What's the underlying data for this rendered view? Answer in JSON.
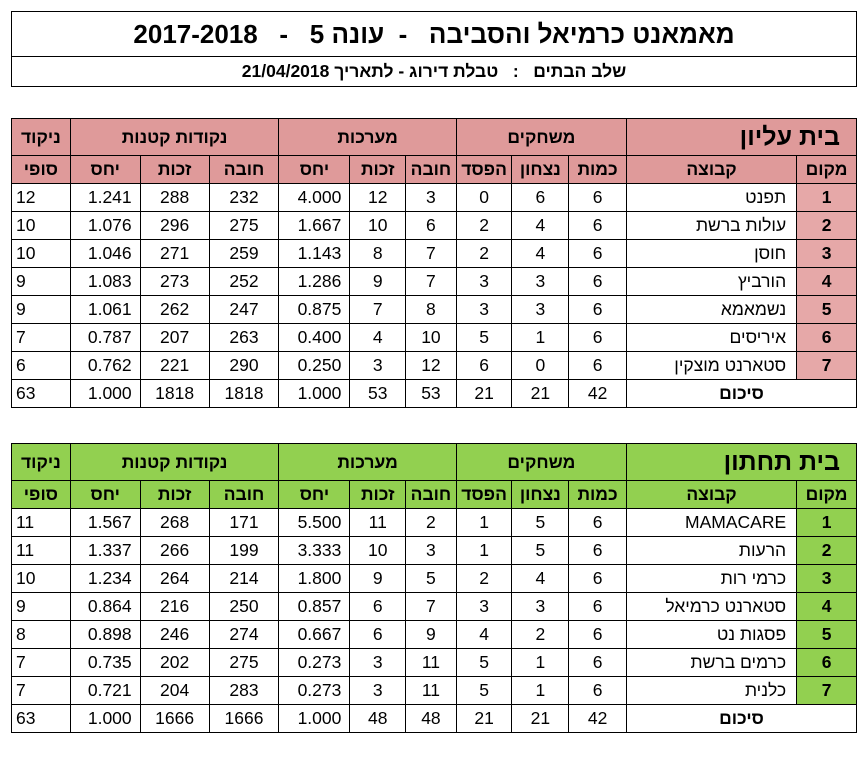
{
  "header": {
    "title": "מאמאנט כרמיאל והסביבה   -  עונה 5   -   2017-2018",
    "subtitle": "שלב הבתים   :   טבלת דירוג - לתאריך 21/04/2018"
  },
  "colors": {
    "upper_header": "#df9a9a",
    "lower_header": "#92d050"
  },
  "columns": {
    "points_top": "ניקוד",
    "points_bottom": "סופי",
    "small_points": "נקודות קטנות",
    "sets": "מערכות",
    "games": "משחקים",
    "ratio": "יחס",
    "won": "זכות",
    "lost": "חובה",
    "loss": "הפסד",
    "win": "נצחון",
    "played": "כמות",
    "team": "קבוצה",
    "place": "מקום"
  },
  "upper": {
    "name": "בית עליון",
    "rows": [
      {
        "rank": "1",
        "team": "תפנט",
        "played": "6",
        "wins": "6",
        "losses": "0",
        "sets_lost": "3",
        "sets_won": "12",
        "sets_ratio": "4.000",
        "pts_lost": "232",
        "pts_won": "288",
        "pts_ratio": "1.241",
        "score": "12"
      },
      {
        "rank": "2",
        "team": "עולות ברשת",
        "played": "6",
        "wins": "4",
        "losses": "2",
        "sets_lost": "6",
        "sets_won": "10",
        "sets_ratio": "1.667",
        "pts_lost": "275",
        "pts_won": "296",
        "pts_ratio": "1.076",
        "score": "10"
      },
      {
        "rank": "3",
        "team": "חוסן",
        "played": "6",
        "wins": "4",
        "losses": "2",
        "sets_lost": "7",
        "sets_won": "8",
        "sets_ratio": "1.143",
        "pts_lost": "259",
        "pts_won": "271",
        "pts_ratio": "1.046",
        "score": "10"
      },
      {
        "rank": "4",
        "team": "הורביץ",
        "played": "6",
        "wins": "3",
        "losses": "3",
        "sets_lost": "7",
        "sets_won": "9",
        "sets_ratio": "1.286",
        "pts_lost": "252",
        "pts_won": "273",
        "pts_ratio": "1.083",
        "score": "9"
      },
      {
        "rank": "5",
        "team": "נשמאמא",
        "played": "6",
        "wins": "3",
        "losses": "3",
        "sets_lost": "8",
        "sets_won": "7",
        "sets_ratio": "0.875",
        "pts_lost": "247",
        "pts_won": "262",
        "pts_ratio": "1.061",
        "score": "9"
      },
      {
        "rank": "6",
        "team": "איריסים",
        "played": "6",
        "wins": "1",
        "losses": "5",
        "sets_lost": "10",
        "sets_won": "4",
        "sets_ratio": "0.400",
        "pts_lost": "263",
        "pts_won": "207",
        "pts_ratio": "0.787",
        "score": "7"
      },
      {
        "rank": "7",
        "team": "סטארנט מוצקין",
        "played": "6",
        "wins": "0",
        "losses": "6",
        "sets_lost": "12",
        "sets_won": "3",
        "sets_ratio": "0.250",
        "pts_lost": "290",
        "pts_won": "221",
        "pts_ratio": "0.762",
        "score": "6"
      }
    ],
    "total": {
      "label": "סיכום",
      "played": "42",
      "wins": "21",
      "losses": "21",
      "sets_lost": "53",
      "sets_won": "53",
      "sets_ratio": "1.000",
      "pts_lost": "1818",
      "pts_won": "1818",
      "pts_ratio": "1.000",
      "score": "63"
    }
  },
  "lower": {
    "name": "בית תחתון",
    "rows": [
      {
        "rank": "1",
        "team": "MAMACARE",
        "played": "6",
        "wins": "5",
        "losses": "1",
        "sets_lost": "2",
        "sets_won": "11",
        "sets_ratio": "5.500",
        "pts_lost": "171",
        "pts_won": "268",
        "pts_ratio": "1.567",
        "score": "11"
      },
      {
        "rank": "2",
        "team": "הרעות",
        "played": "6",
        "wins": "5",
        "losses": "1",
        "sets_lost": "3",
        "sets_won": "10",
        "sets_ratio": "3.333",
        "pts_lost": "199",
        "pts_won": "266",
        "pts_ratio": "1.337",
        "score": "11"
      },
      {
        "rank": "3",
        "team": "כרמי רות",
        "played": "6",
        "wins": "4",
        "losses": "2",
        "sets_lost": "5",
        "sets_won": "9",
        "sets_ratio": "1.800",
        "pts_lost": "214",
        "pts_won": "264",
        "pts_ratio": "1.234",
        "score": "10"
      },
      {
        "rank": "4",
        "team": "סטארנט כרמיאל",
        "played": "6",
        "wins": "3",
        "losses": "3",
        "sets_lost": "7",
        "sets_won": "6",
        "sets_ratio": "0.857",
        "pts_lost": "250",
        "pts_won": "216",
        "pts_ratio": "0.864",
        "score": "9"
      },
      {
        "rank": "5",
        "team": "פסגות נט",
        "played": "6",
        "wins": "2",
        "losses": "4",
        "sets_lost": "9",
        "sets_won": "6",
        "sets_ratio": "0.667",
        "pts_lost": "274",
        "pts_won": "246",
        "pts_ratio": "0.898",
        "score": "8"
      },
      {
        "rank": "6",
        "team": "כרמים ברשת",
        "played": "6",
        "wins": "1",
        "losses": "5",
        "sets_lost": "11",
        "sets_won": "3",
        "sets_ratio": "0.273",
        "pts_lost": "275",
        "pts_won": "202",
        "pts_ratio": "0.735",
        "score": "7"
      },
      {
        "rank": "7",
        "team": "כלנית",
        "played": "6",
        "wins": "1",
        "losses": "5",
        "sets_lost": "11",
        "sets_won": "3",
        "sets_ratio": "0.273",
        "pts_lost": "283",
        "pts_won": "204",
        "pts_ratio": "0.721",
        "score": "7"
      }
    ],
    "total": {
      "label": "סיכום",
      "played": "42",
      "wins": "21",
      "losses": "21",
      "sets_lost": "48",
      "sets_won": "48",
      "sets_ratio": "1.000",
      "pts_lost": "1666",
      "pts_won": "1666",
      "pts_ratio": "1.000",
      "score": "63"
    }
  }
}
